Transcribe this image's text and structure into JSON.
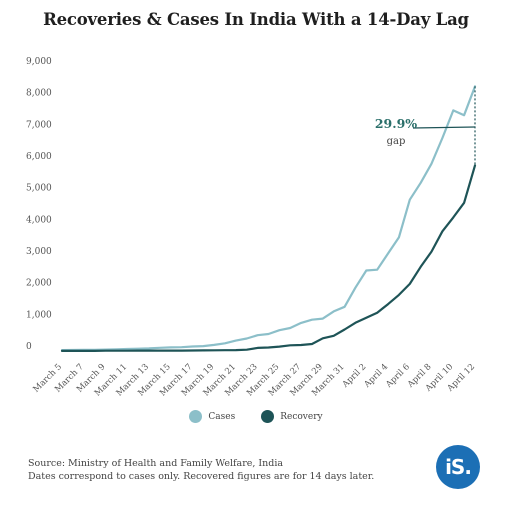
{
  "title": "Recoveries & Cases In India With a 14-Day Lag",
  "colors": {
    "cases": "#8cbfc9",
    "recovery": "#1e5457",
    "accent": "#2a6f6a",
    "logo": "#1c6fb5"
  },
  "annotation": {
    "value": "29.9%",
    "label": "gap"
  },
  "legend": {
    "cases": "Cases",
    "recovery": "Recovery"
  },
  "source": {
    "line1": "Source: Ministry of Health and Family Welfare, India",
    "line2": "Dates correspond to cases only. Recovered figures are for 14 days later."
  },
  "logo_text": "iS.",
  "chart_data": {
    "type": "line",
    "title": "Recoveries & Cases In India With a 14-Day Lag",
    "xlabel": "",
    "ylabel": "",
    "ylim": [
      0,
      9000
    ],
    "yticks": [
      0,
      1000,
      2000,
      3000,
      4000,
      5000,
      6000,
      7000,
      8000,
      9000
    ],
    "ytick_labels": [
      "0",
      "1,000",
      "2,000",
      "3,000",
      "4,000",
      "5,000",
      "6,000",
      "7,000",
      "8,000",
      "9,000"
    ],
    "x": [
      "March 5",
      "March 6",
      "March 7",
      "March 8",
      "March 9",
      "March 10",
      "March 11",
      "March 12",
      "March 13",
      "March 14",
      "March 15",
      "March 16",
      "March 17",
      "March 18",
      "March 19",
      "March 20",
      "March 21",
      "March 22",
      "March 23",
      "March 24",
      "March 25",
      "March 26",
      "March 27",
      "March 28",
      "March 29",
      "March 30",
      "March 31",
      "April 1",
      "April 2",
      "April 3",
      "April 4",
      "April 5",
      "April 6",
      "April 7",
      "April 8",
      "April 9",
      "April 10",
      "April 11",
      "April 12"
    ],
    "x_tick_labels": [
      "March 5",
      "March 7",
      "March 9",
      "March 11",
      "March 13",
      "March 15",
      "March 17",
      "March 19",
      "March 21",
      "March 23",
      "March 25",
      "March 27",
      "March 29",
      "March 31",
      "April 2",
      "April 4",
      "April 6",
      "April 8",
      "April 10",
      "April 12"
    ],
    "grid": false,
    "legend_position": "bottom-center",
    "series": [
      {
        "name": "Cases",
        "values": [
          30,
          31,
          34,
          39,
          43,
          50,
          62,
          73,
          82,
          102,
          113,
          119,
          142,
          156,
          194,
          244,
          330,
          396,
          499,
          536,
          657,
          727,
          887,
          987,
          1024,
          1251,
          1397,
          1998,
          2543,
          2567,
          3082,
          3588,
          4778,
          5311,
          5916,
          6725,
          7598,
          7447,
          8356
        ]
      },
      {
        "name": "Recovery",
        "values": [
          3,
          3,
          4,
          4,
          10,
          10,
          10,
          13,
          14,
          14,
          14,
          14,
          15,
          20,
          23,
          25,
          30,
          40,
          99,
          110,
          140,
          180,
          190,
          220,
          400,
          480,
          680,
          890,
          1050,
          1210,
          1480,
          1770,
          2120,
          2660,
          3140,
          3780,
          4220,
          4680,
          5860
        ]
      }
    ]
  }
}
